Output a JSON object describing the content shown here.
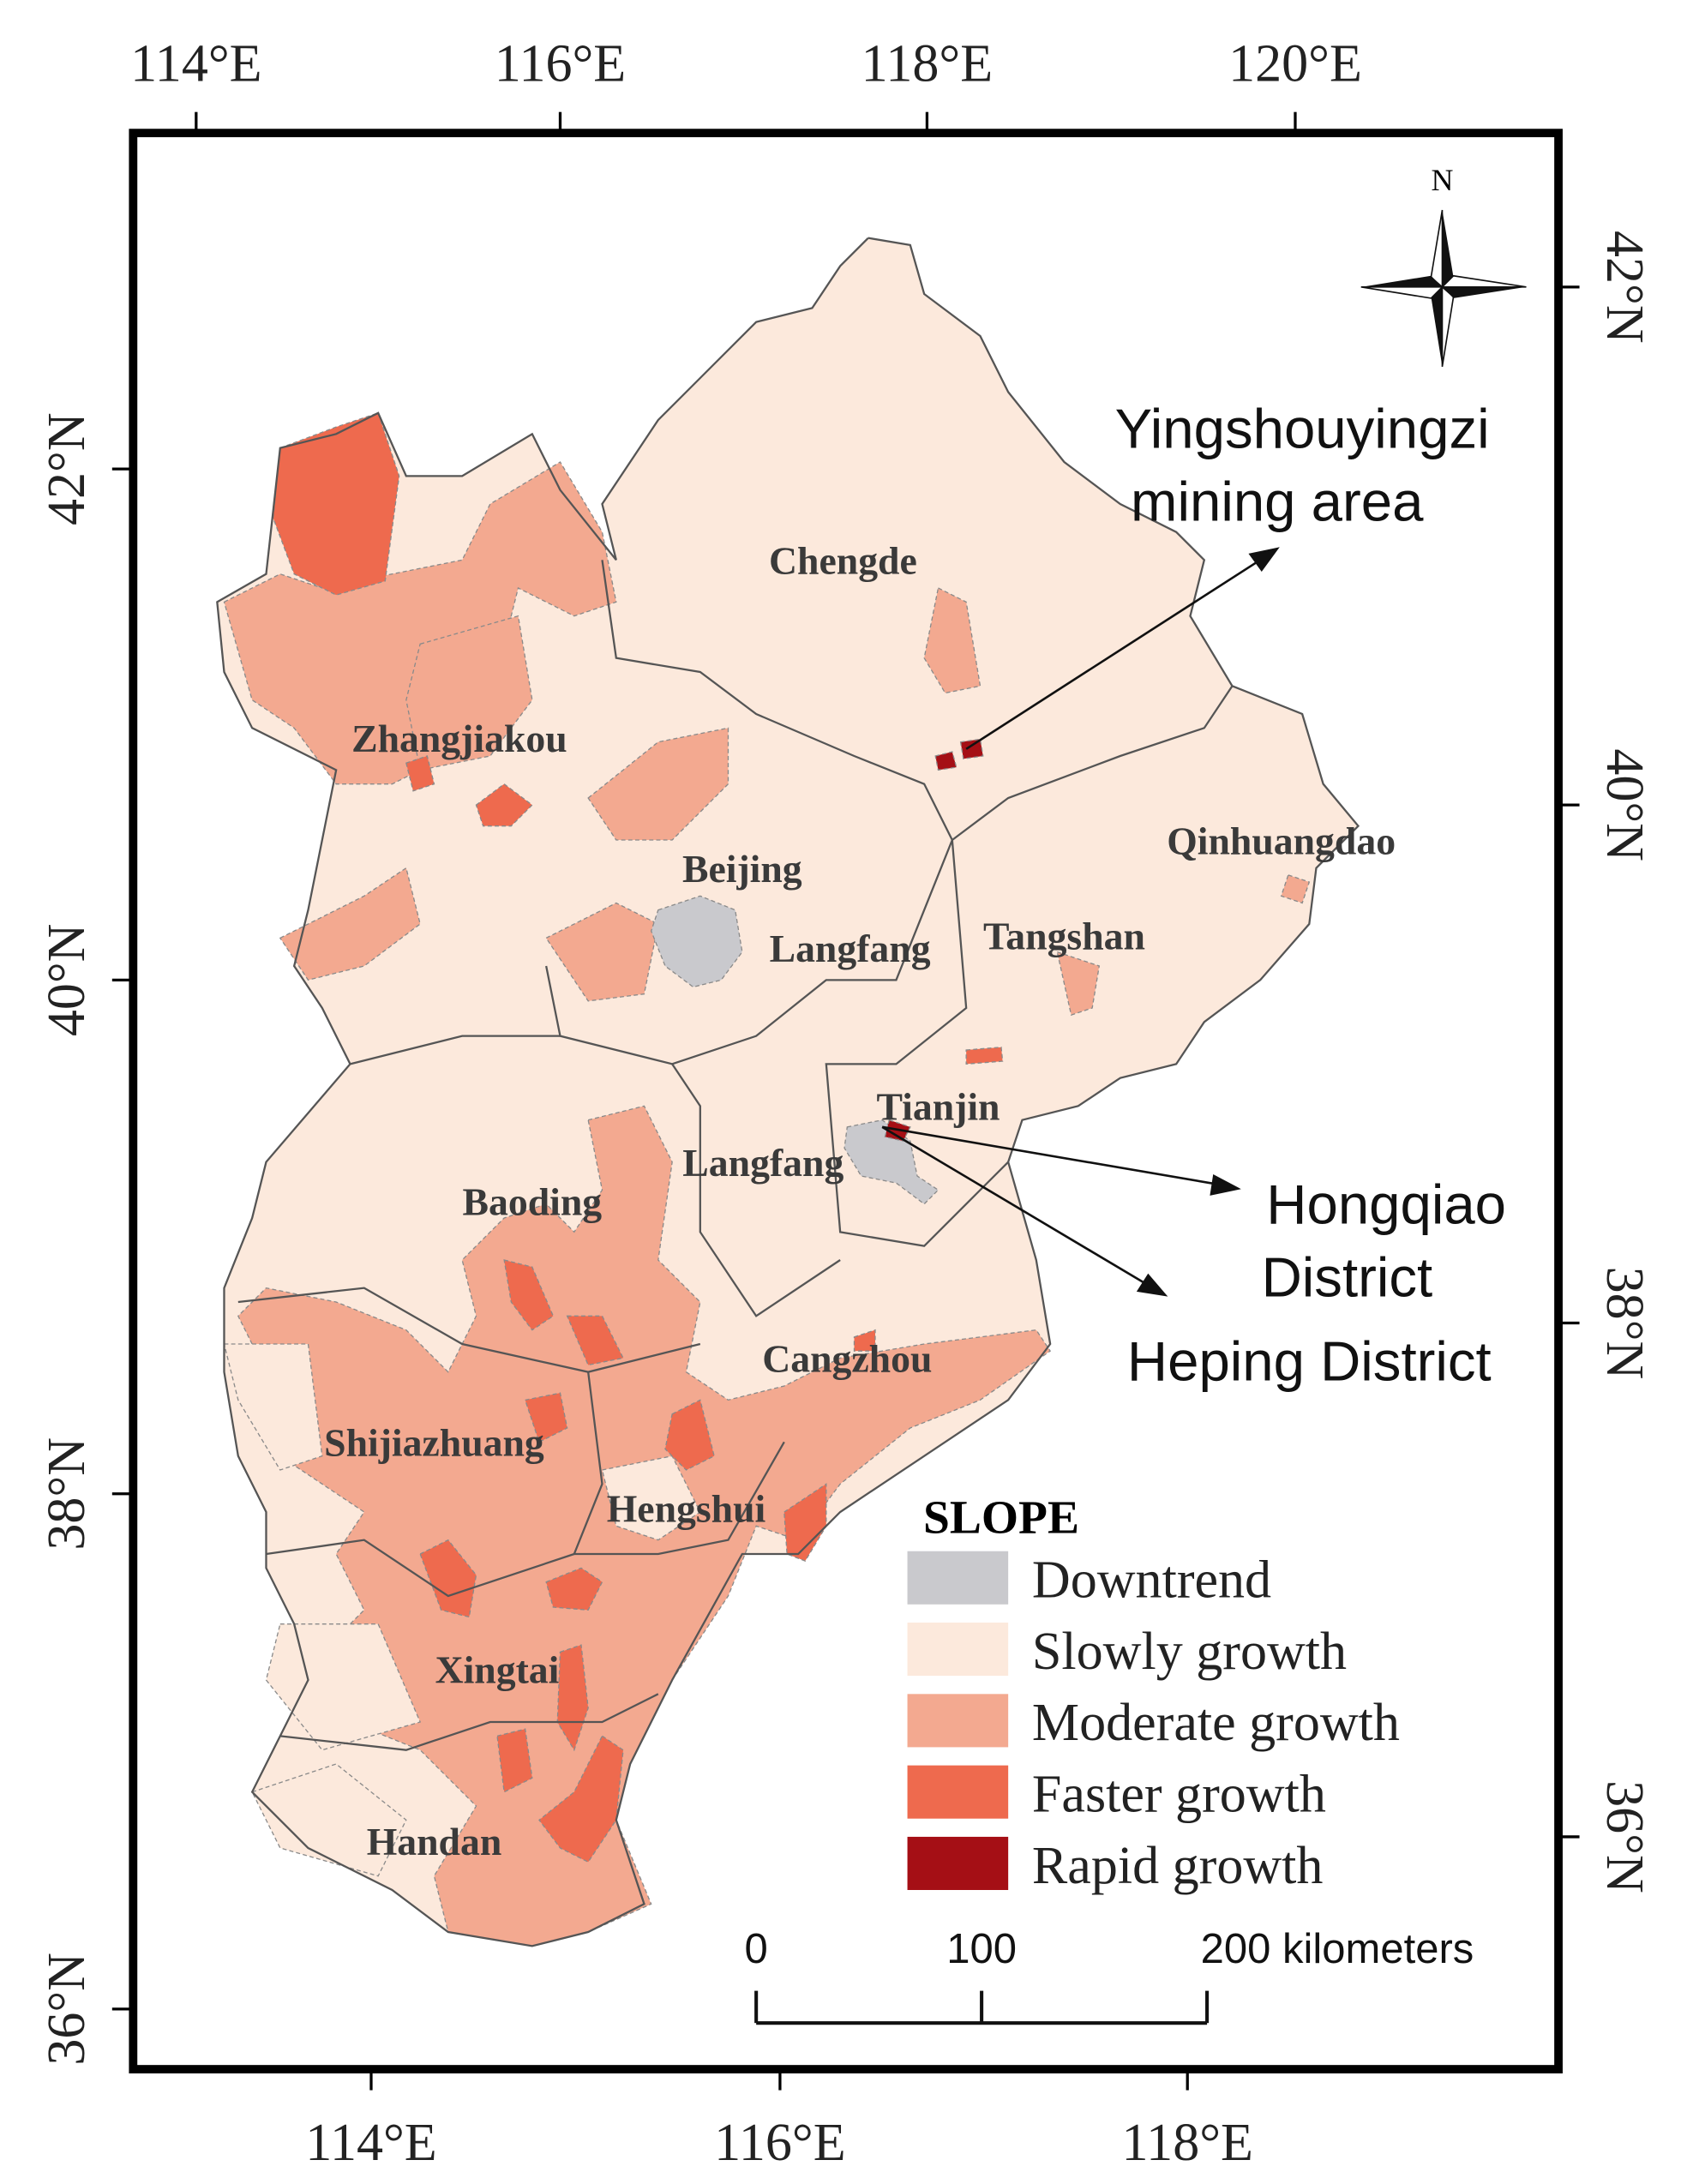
{
  "graticule": {
    "top": [
      "114°E",
      "116°E",
      "118°E",
      "120°E"
    ],
    "bottom": [
      "114°E",
      "116°E",
      "118°E"
    ],
    "left": [
      "42°N",
      "40°N",
      "38°N",
      "36°N"
    ],
    "right": [
      "42°N",
      "40°N",
      "38°N",
      "36°N"
    ]
  },
  "north_label": "N",
  "cities": [
    "Chengde",
    "Zhangjiakou",
    "Beijing",
    "Langfang",
    "Tangshan",
    "Qinhuangdao",
    "Tianjin",
    "Langfang",
    "Baoding",
    "Cangzhou",
    "Shijiazhuang",
    "Hengshui",
    "Xingtai",
    "Handan"
  ],
  "annotations": [
    "Yingshouyingzi",
    "mining area",
    "Hongqiao",
    "District",
    "Heping District"
  ],
  "legend": {
    "title": "SLOPE",
    "items": [
      {
        "label": "Downtrend",
        "color": "#c9c9cd"
      },
      {
        "label": "Slowly growth",
        "color": "#fce9dc"
      },
      {
        "label": "Moderate growth",
        "color": "#f3a990"
      },
      {
        "label": "Faster growth",
        "color": "#ee6a4e"
      },
      {
        "label": "Rapid growth",
        "color": "#a50f15"
      }
    ]
  },
  "scale_bar": {
    "ticks": [
      0,
      100,
      {
        "value": 200,
        "label": "200 kilometers"
      }
    ]
  }
}
